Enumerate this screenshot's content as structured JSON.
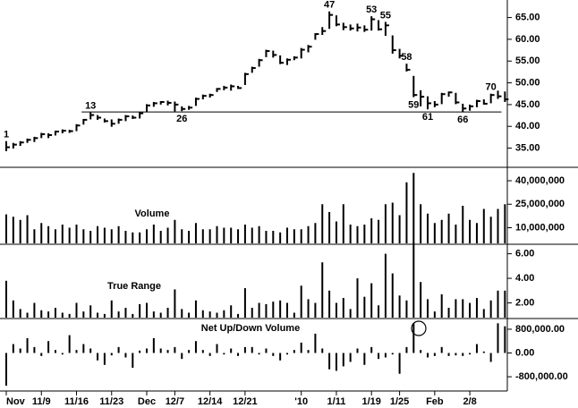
{
  "chart_data": [
    {
      "type": "ohlc",
      "categories": [
        "Nov",
        null,
        null,
        null,
        null,
        "11/9",
        null,
        null,
        null,
        null,
        "11/16",
        null,
        null,
        null,
        null,
        "11/23",
        null,
        null,
        null,
        null,
        "Dec",
        null,
        null,
        null,
        "12/7",
        null,
        null,
        null,
        null,
        "12/14",
        null,
        null,
        null,
        null,
        "12/21",
        null,
        null,
        null,
        null,
        null,
        null,
        null,
        "'10",
        null,
        null,
        null,
        null,
        "1/11",
        null,
        null,
        null,
        null,
        "1/19",
        null,
        null,
        null,
        "1/25",
        null,
        null,
        null,
        null,
        "Feb",
        null,
        null,
        null,
        null,
        "2/8",
        null,
        null,
        null,
        null,
        null
      ],
      "high": [
        36.6,
        36.2,
        36.6,
        37.2,
        37.6,
        38.5,
        38.4,
        39.0,
        39.3,
        39.2,
        40.5,
        41.7,
        43.2,
        42.6,
        41.8,
        41.6,
        41.8,
        42.6,
        42.5,
        43.3,
        45.1,
        45.6,
        45.8,
        45.9,
        45.7,
        44.6,
        44.7,
        46.6,
        47.3,
        47.5,
        48.8,
        49.3,
        49.6,
        49.3,
        52.3,
        53.7,
        55.5,
        57.6,
        57.4,
        56.3,
        55.6,
        56.1,
        58.0,
        58.7,
        61.4,
        62.8,
        66.4,
        65.5,
        63.8,
        63.4,
        63.6,
        63.2,
        65.3,
        64.4,
        64.0,
        60.9,
        57.8,
        54.4,
        51.6,
        48.3,
        46.9,
        45.8,
        47.7,
        48.0,
        47.7,
        45.2,
        45.0,
        46.1,
        46.2,
        47.5,
        48.2,
        48.0
      ],
      "low": [
        34.3,
        34.9,
        35.5,
        36.2,
        36.4,
        37.3,
        37.3,
        37.9,
        38.4,
        38.5,
        38.9,
        40.4,
        41.6,
        41.5,
        40.9,
        39.9,
        40.6,
        41.2,
        41.7,
        41.8,
        43.3,
        44.5,
        45.0,
        44.8,
        43.4,
        43.5,
        43.8,
        44.7,
        46.2,
        46.6,
        47.9,
        48.3,
        48.2,
        48.6,
        49.5,
        52.3,
        53.7,
        55.9,
        55.8,
        54.3,
        54.1,
        55.2,
        55.6,
        57.0,
        59.9,
        61.0,
        62.4,
        63.0,
        62.1,
        62.0,
        61.8,
        61.7,
        62.0,
        62.0,
        60.8,
        56.7,
        55.6,
        52.6,
        46.7,
        44.6,
        43.9,
        44.4,
        45.1,
        46.8,
        45.1,
        43.3,
        43.6,
        44.4,
        45.0,
        45.3,
        46.3,
        45.6
      ],
      "close": [
        35.2,
        35.8,
        36.3,
        36.9,
        37.3,
        38.2,
        38.0,
        38.8,
        39.0,
        38.9,
        40.2,
        41.5,
        42.6,
        42.0,
        41.2,
        40.6,
        41.5,
        42.3,
        42.0,
        43.0,
        44.8,
        45.3,
        45.6,
        45.4,
        45.0,
        44.0,
        44.3,
        46.3,
        47.0,
        47.2,
        48.6,
        48.9,
        49.2,
        48.8,
        52.0,
        53.4,
        55.2,
        57.3,
        56.4,
        54.6,
        55.3,
        55.8,
        57.6,
        58.3,
        61.2,
        61.9,
        65.6,
        63.4,
        62.8,
        62.5,
        62.7,
        62.2,
        64.6,
        62.3,
        63.2,
        57.5,
        56.2,
        53.0,
        47.2,
        46.8,
        45.3,
        45.0,
        47.4,
        47.8,
        45.5,
        44.1,
        44.6,
        45.8,
        45.2,
        47.2,
        46.9,
        46.2
      ],
      "color": "#000000",
      "hline": 43.3,
      "annotations": [
        1,
        13,
        26,
        47,
        53,
        55,
        58,
        59,
        61,
        66,
        70
      ],
      "annotation_positions": [
        "above",
        "above",
        "below",
        "above",
        "above",
        "above",
        "above",
        "below",
        "below",
        "below",
        "above"
      ],
      "ylim": [
        31,
        68
      ],
      "yticks": [
        {
          "value": 35,
          "label": "35.00"
        },
        {
          "value": 40,
          "label": "40.00"
        },
        {
          "value": 45,
          "label": "45.00"
        },
        {
          "value": 50,
          "label": "50.00"
        },
        {
          "value": 55,
          "label": "55.00"
        },
        {
          "value": 60,
          "label": "60.00"
        },
        {
          "value": 65,
          "label": "65.00"
        }
      ]
    },
    {
      "type": "bar",
      "title": "Volume",
      "color": "#000000",
      "values": [
        18500000,
        17000000,
        15000000,
        18000000,
        9000000,
        13000000,
        11000000,
        9000000,
        12000000,
        10000000,
        12000000,
        9000000,
        8000000,
        11000000,
        10000000,
        9000000,
        11000000,
        8000000,
        7000000,
        7000000,
        9000000,
        12000000,
        8000000,
        10000000,
        15000000,
        9000000,
        8000000,
        13000000,
        9000000,
        9000000,
        11000000,
        10000000,
        10000000,
        9000000,
        12000000,
        10000000,
        11000000,
        8000000,
        8000000,
        7000000,
        10000000,
        9000000,
        9000000,
        11000000,
        13000000,
        25000000,
        20000000,
        14000000,
        25000000,
        12000000,
        11000000,
        12000000,
        16000000,
        15000000,
        25000000,
        26000000,
        18000000,
        39000000,
        45000000,
        25000000,
        19000000,
        13000000,
        15000000,
        19000000,
        12000000,
        24000000,
        15000000,
        13000000,
        22000000,
        17000000,
        22000000,
        25000000
      ],
      "ylim": [
        0,
        48000000
      ],
      "yticks": [
        {
          "value": 10000000,
          "label": "10,000,000"
        },
        {
          "value": 25000000,
          "label": "25,000,000"
        },
        {
          "value": 40000000,
          "label": "40,000,000"
        }
      ]
    },
    {
      "type": "bar",
      "title": "True Range",
      "color": "#000000",
      "values": [
        3.8,
        2.2,
        1.5,
        1.2,
        2.0,
        1.4,
        1.3,
        1.6,
        1.2,
        1.1,
        2.0,
        1.3,
        1.8,
        1.2,
        1.1,
        2.2,
        1.3,
        1.6,
        1.1,
        1.9,
        2.0,
        1.3,
        1.2,
        1.6,
        3.1,
        1.5,
        1.2,
        2.2,
        1.4,
        1.3,
        1.2,
        1.4,
        1.8,
        1.1,
        3.2,
        1.6,
        2.0,
        1.9,
        2.1,
        2.2,
        2.0,
        1.2,
        3.4,
        2.3,
        2.0,
        5.3,
        3.0,
        2.0,
        2.4,
        1.5,
        4.0,
        2.5,
        3.6,
        1.8,
        6.0,
        4.4,
        2.6,
        2.2,
        6.9,
        3.7,
        2.3,
        1.3,
        2.7,
        1.6,
        2.3,
        2.3,
        2.0,
        2.4,
        1.5,
        2.2,
        3.0,
        3.0
      ],
      "ylim": [
        0.8,
        6.7
      ],
      "yticks": [
        {
          "value": 2,
          "label": "2.00"
        },
        {
          "value": 4,
          "label": "4.00"
        },
        {
          "value": 6,
          "label": "6.00"
        }
      ]
    },
    {
      "type": "bar",
      "title": "Net Up/Down Volume",
      "color": "#000000",
      "values": [
        -1100000,
        300000,
        150000,
        500000,
        200000,
        -100000,
        400000,
        100000,
        -50000,
        600000,
        100000,
        300000,
        150000,
        -250000,
        -400000,
        -80000,
        200000,
        -150000,
        -500000,
        80000,
        150000,
        500000,
        150000,
        100000,
        200000,
        -200000,
        100000,
        400000,
        100000,
        -100000,
        300000,
        -50000,
        150000,
        -100000,
        200000,
        200000,
        -50000,
        150000,
        -100000,
        -250000,
        -50000,
        100000,
        350000,
        100000,
        650000,
        150000,
        -550000,
        -600000,
        -450000,
        -300000,
        150000,
        -400000,
        200000,
        -200000,
        -150000,
        -50000,
        -700000,
        200000,
        1000000,
        100000,
        -150000,
        -100000,
        200000,
        -100000,
        -80000,
        -100000,
        -50000,
        300000,
        50000,
        -300000,
        1000000,
        900000
      ],
      "ylim": [
        -1280000,
        1130000
      ],
      "yticks": [
        {
          "value": -800000,
          "label": "-800,000.00"
        },
        {
          "value": 0,
          "label": "0.00"
        },
        {
          "value": 800000,
          "label": "800,000.00"
        }
      ]
    }
  ]
}
